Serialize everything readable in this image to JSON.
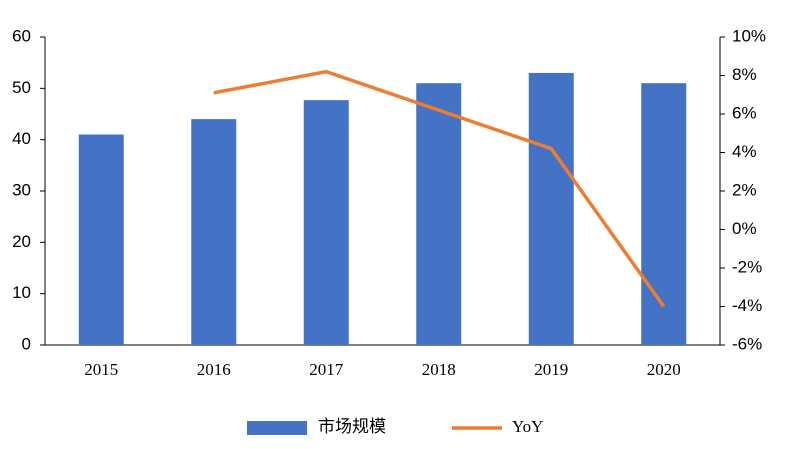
{
  "chart_data": {
    "type": "bar",
    "categories": [
      "2015",
      "2016",
      "2017",
      "2018",
      "2019",
      "2020"
    ],
    "series": [
      {
        "name": "市场规模",
        "type": "bar",
        "color": "#4472c4",
        "values": [
          41,
          44,
          47.7,
          51,
          53,
          51
        ]
      },
      {
        "name": "YoY",
        "type": "line",
        "axis": "y2",
        "color": "#ed7d31",
        "values": [
          null,
          7.1,
          8.2,
          6.2,
          4.2,
          -4.0
        ]
      }
    ],
    "ylim": [
      0,
      60
    ],
    "yticks": [
      0,
      10,
      20,
      30,
      40,
      50,
      60
    ],
    "y2lim": [
      -6,
      10
    ],
    "y2ticks": [
      {
        "value": -6,
        "label": "-6%"
      },
      {
        "value": -4,
        "label": "-4%"
      },
      {
        "value": -2,
        "label": "-2%"
      },
      {
        "value": 0,
        "label": "0%"
      },
      {
        "value": 2,
        "label": "2%"
      },
      {
        "value": 4,
        "label": "4%"
      },
      {
        "value": 6,
        "label": "6%"
      },
      {
        "value": 8,
        "label": "8%"
      },
      {
        "value": 10,
        "label": "10%"
      }
    ],
    "grid": false,
    "legend": "bottom"
  }
}
